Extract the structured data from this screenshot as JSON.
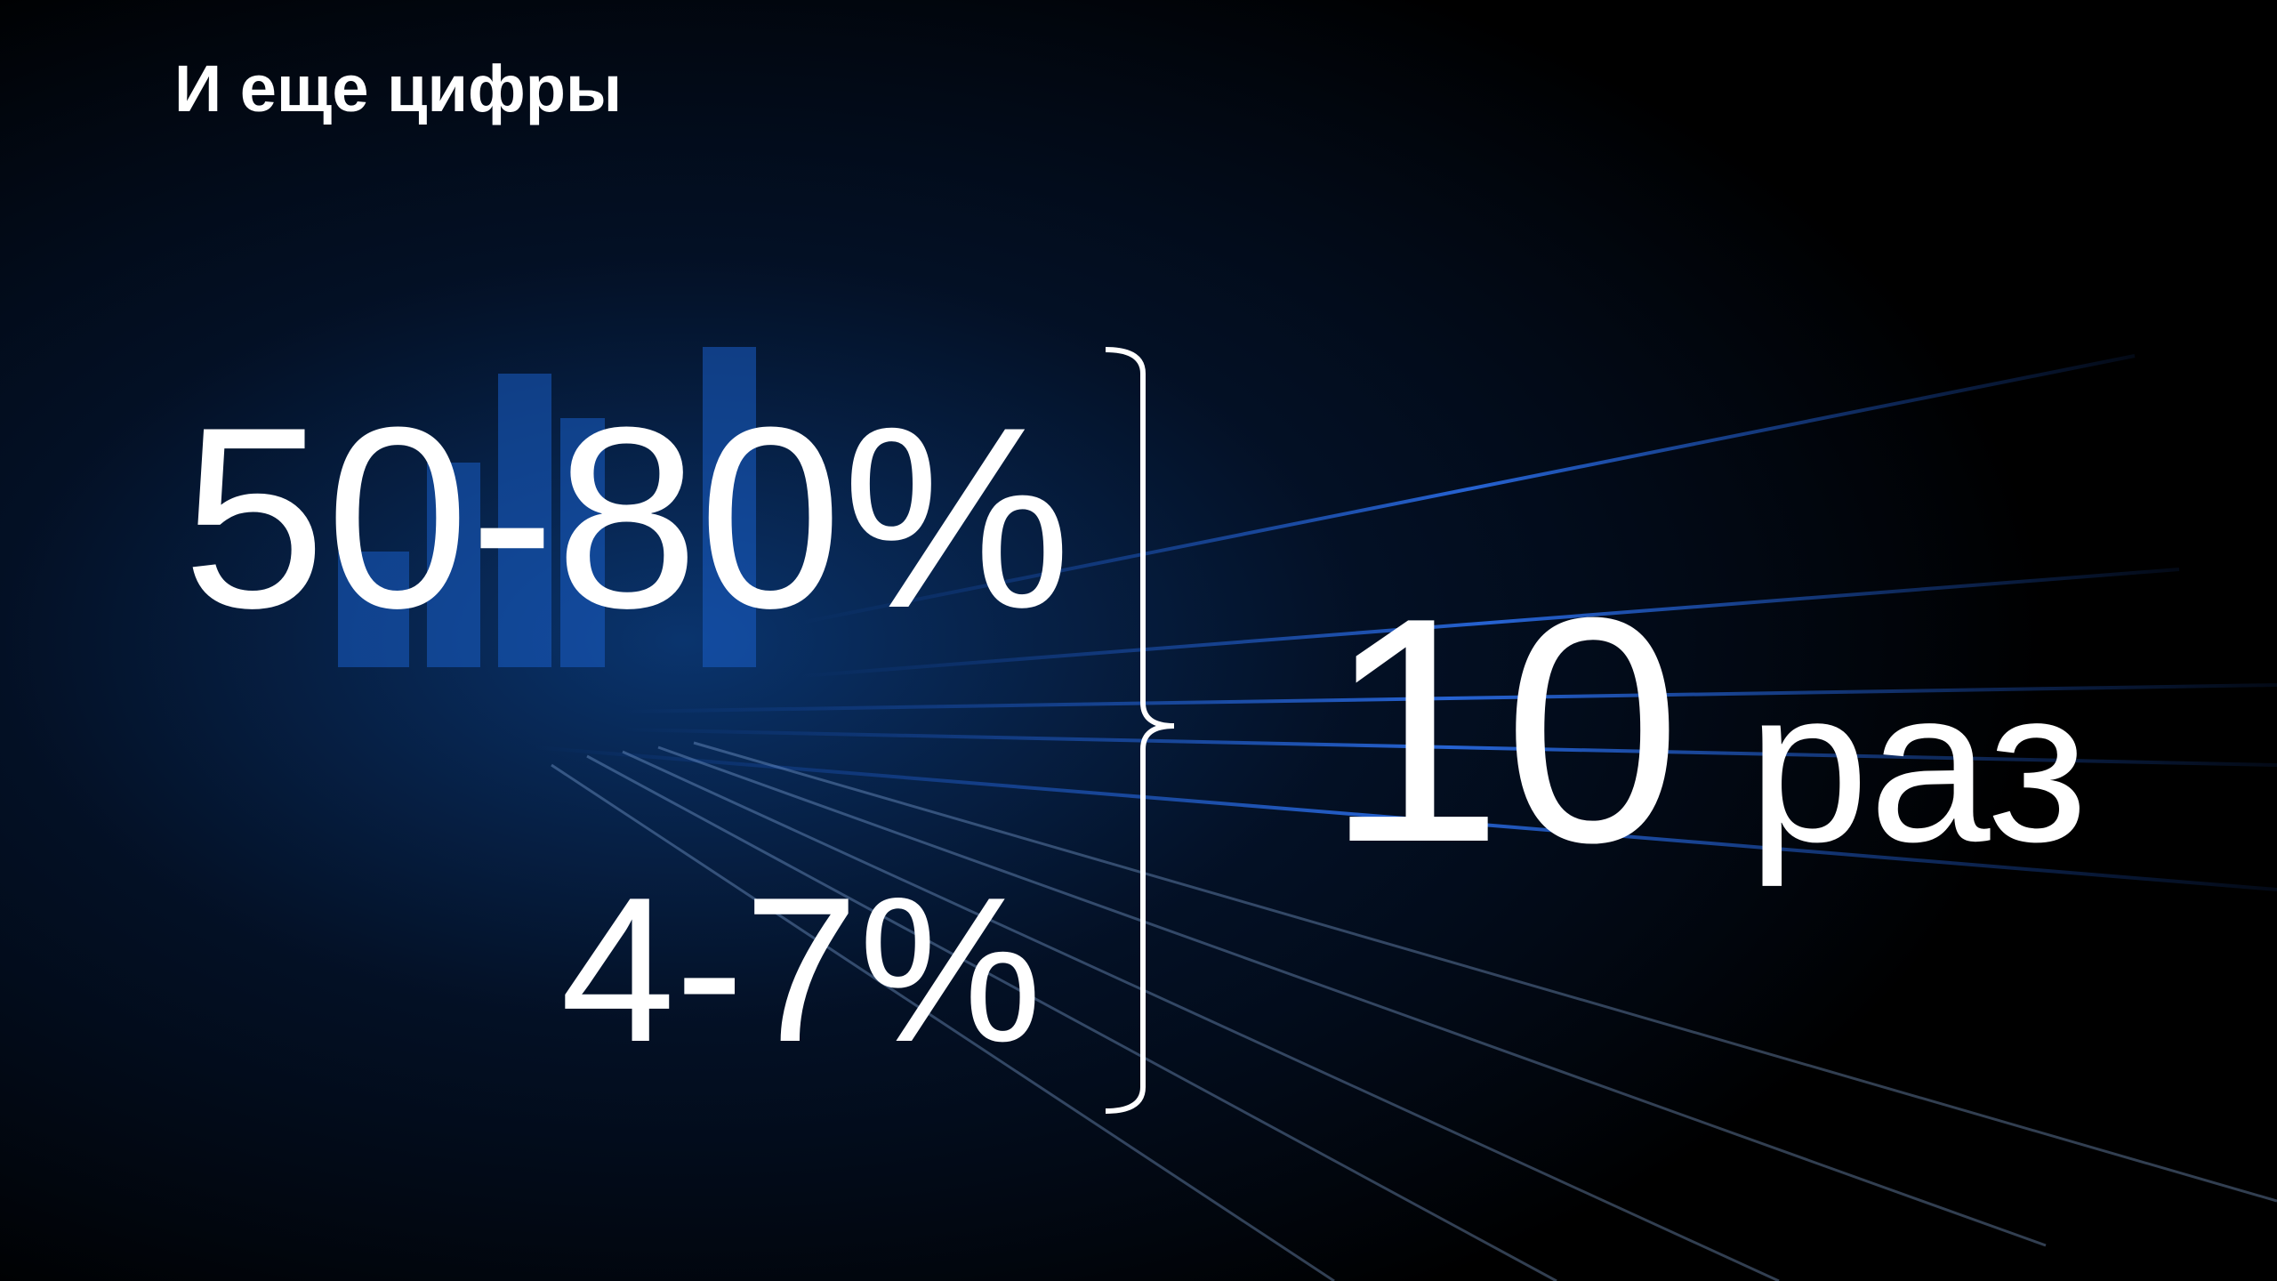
{
  "header": {
    "title": "И еще цифры"
  },
  "figures": {
    "top": "50-80%",
    "bottom": "4-7%",
    "result_number": "10",
    "result_unit": "раз"
  }
}
